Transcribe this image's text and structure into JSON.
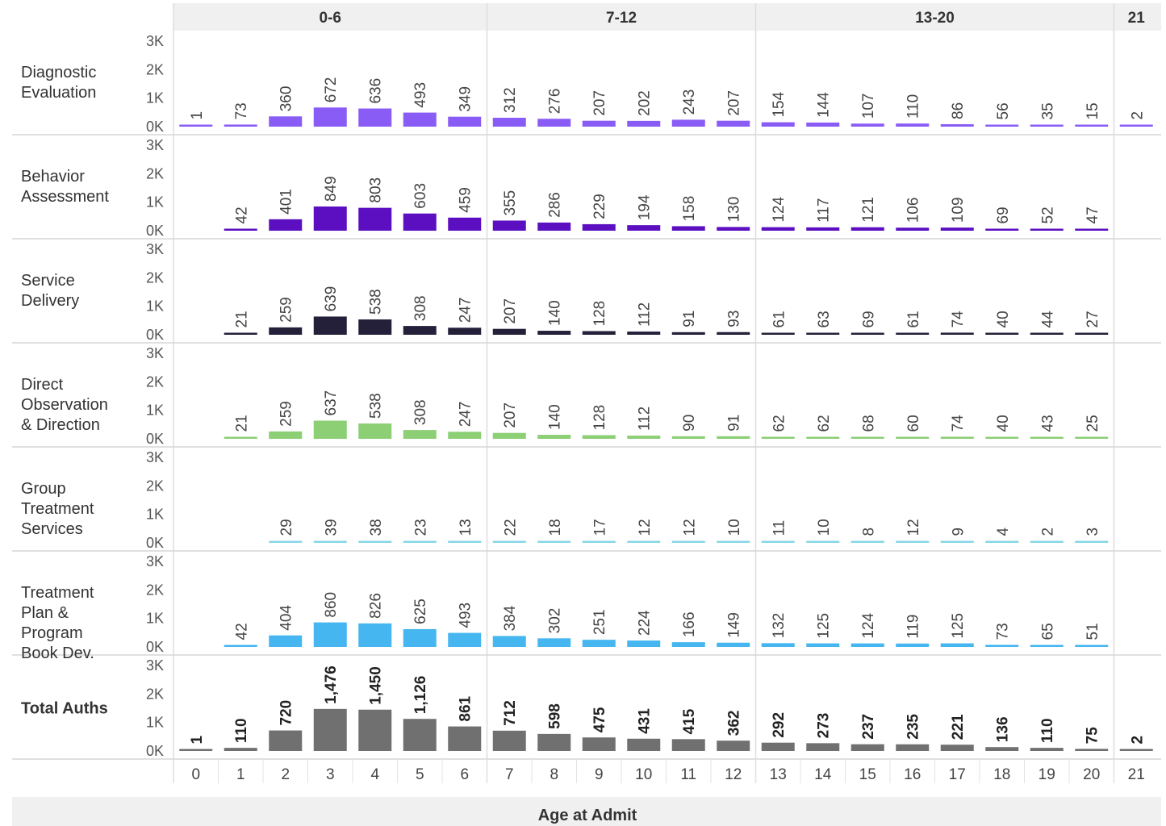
{
  "chart_data": {
    "type": "bar",
    "xlabel": "Age at Admit",
    "x": [
      0,
      1,
      2,
      3,
      4,
      5,
      6,
      7,
      8,
      9,
      10,
      11,
      12,
      13,
      14,
      15,
      16,
      17,
      18,
      19,
      20,
      21
    ],
    "column_groups": [
      {
        "label": "0-6",
        "from": 0,
        "to": 6
      },
      {
        "label": "7-12",
        "from": 7,
        "to": 12
      },
      {
        "label": "13-20",
        "from": 13,
        "to": 20
      },
      {
        "label": "21",
        "from": 21,
        "to": 21
      }
    ],
    "y_ticks": [
      "3K",
      "2K",
      "1K",
      "0K"
    ],
    "ylim": [
      0,
      3000
    ],
    "series": [
      {
        "name": "Diagnostic Evaluation",
        "label_lines": [
          "Diagnostic",
          "Evaluation"
        ],
        "color": "#8a5cf6",
        "bold": false,
        "values": [
          1,
          73,
          360,
          672,
          636,
          493,
          349,
          312,
          276,
          207,
          202,
          243,
          207,
          154,
          144,
          107,
          110,
          86,
          56,
          35,
          15,
          2
        ],
        "labels": [
          "1",
          "73",
          "360",
          "672",
          "636",
          "493",
          "349",
          "312",
          "276",
          "207",
          "202",
          "243",
          "207",
          "154",
          "144",
          "107",
          "110",
          "86",
          "56",
          "35",
          "15",
          "2"
        ]
      },
      {
        "name": "Behavior Assessment",
        "label_lines": [
          "Behavior",
          "Assessment"
        ],
        "color": "#5b0fc0",
        "bold": false,
        "values": [
          null,
          42,
          401,
          849,
          803,
          603,
          459,
          355,
          286,
          229,
          194,
          158,
          130,
          124,
          117,
          121,
          106,
          109,
          69,
          52,
          47,
          null
        ],
        "labels": [
          "",
          "42",
          "401",
          "849",
          "803",
          "603",
          "459",
          "355",
          "286",
          "229",
          "194",
          "158",
          "130",
          "124",
          "117",
          "121",
          "106",
          "109",
          "69",
          "52",
          "47",
          ""
        ]
      },
      {
        "name": "Service Delivery",
        "label_lines": [
          "Service",
          "Delivery"
        ],
        "color": "#24203a",
        "bold": false,
        "values": [
          null,
          21,
          259,
          639,
          538,
          308,
          247,
          207,
          140,
          128,
          112,
          91,
          93,
          61,
          63,
          69,
          61,
          74,
          40,
          44,
          27,
          null
        ],
        "labels": [
          "",
          "21",
          "259",
          "639",
          "538",
          "308",
          "247",
          "207",
          "140",
          "128",
          "112",
          "91",
          "93",
          "61",
          "63",
          "69",
          "61",
          "74",
          "40",
          "44",
          "27",
          ""
        ]
      },
      {
        "name": "Direct Observation & Direction",
        "label_lines": [
          "Direct",
          "Observation",
          "& Direction"
        ],
        "color": "#8ccf74",
        "bold": false,
        "values": [
          null,
          21,
          259,
          637,
          538,
          308,
          247,
          207,
          140,
          128,
          112,
          90,
          91,
          62,
          62,
          68,
          60,
          74,
          40,
          43,
          25,
          null
        ],
        "labels": [
          "",
          "21",
          "259",
          "637",
          "538",
          "308",
          "247",
          "207",
          "140",
          "128",
          "112",
          "90",
          "91",
          "62",
          "62",
          "68",
          "60",
          "74",
          "40",
          "43",
          "25",
          ""
        ]
      },
      {
        "name": "Group Treatment Services",
        "label_lines": [
          "Group",
          "Treatment",
          "Services"
        ],
        "color": "#86d6e6",
        "bold": false,
        "values": [
          null,
          null,
          29,
          39,
          38,
          23,
          13,
          22,
          18,
          17,
          12,
          12,
          10,
          11,
          10,
          8,
          12,
          9,
          4,
          2,
          3,
          null
        ],
        "labels": [
          "",
          "",
          "29",
          "39",
          "38",
          "23",
          "13",
          "22",
          "18",
          "17",
          "12",
          "12",
          "10",
          "11",
          "10",
          "8",
          "12",
          "9",
          "4",
          "2",
          "3",
          ""
        ]
      },
      {
        "name": "Treatment Plan & Program Book Dev.",
        "label_lines": [
          "Treatment",
          "Plan &",
          "Program",
          "Book Dev."
        ],
        "color": "#45b6f0",
        "bold": false,
        "values": [
          null,
          42,
          404,
          860,
          826,
          625,
          493,
          384,
          302,
          251,
          224,
          166,
          149,
          132,
          125,
          124,
          119,
          125,
          73,
          65,
          51,
          null
        ],
        "labels": [
          "",
          "42",
          "404",
          "860",
          "826",
          "625",
          "493",
          "384",
          "302",
          "251",
          "224",
          "166",
          "149",
          "132",
          "125",
          "124",
          "119",
          "125",
          "73",
          "65",
          "51",
          ""
        ]
      },
      {
        "name": "Total Auths",
        "label_lines": [
          "Total Auths"
        ],
        "color": "#707070",
        "bold": true,
        "values": [
          1,
          110,
          720,
          1476,
          1450,
          1126,
          861,
          712,
          598,
          475,
          431,
          415,
          362,
          292,
          273,
          237,
          235,
          221,
          136,
          110,
          75,
          2
        ],
        "labels": [
          "1",
          "110",
          "720",
          "1,476",
          "1,450",
          "1,126",
          "861",
          "712",
          "598",
          "475",
          "431",
          "415",
          "362",
          "292",
          "273",
          "237",
          "235",
          "221",
          "136",
          "110",
          "75",
          "2"
        ]
      }
    ]
  }
}
